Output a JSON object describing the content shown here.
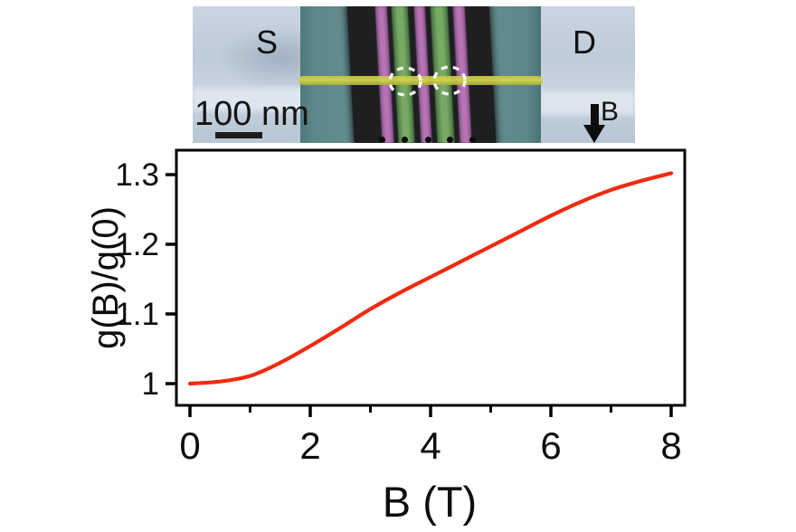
{
  "sem": {
    "source_label": "S",
    "drain_label": "D",
    "scale_bar_label": "100 nm",
    "field_arrow_label": "B",
    "gate_dot_count": 5,
    "colors": {
      "mesa": "#5e8889",
      "gate_dark": "#1d1f21",
      "gate_pink": "#b873b5",
      "gate_green": "#77ab64",
      "nanowire": "#d6d84e",
      "marker": "#ffffff",
      "dot": "#0c0c0c"
    }
  },
  "chart_data": {
    "type": "line",
    "title": "",
    "xlabel": "B (T)",
    "ylabel": "g(B)/g(0)",
    "xlim": [
      -0.23,
      8.23
    ],
    "ylim": [
      0.968,
      1.336
    ],
    "xticks": [
      0,
      2,
      4,
      6,
      8
    ],
    "xticks_minor": [
      1,
      3,
      5,
      7
    ],
    "yticks": [
      1,
      1.1,
      1.2,
      1.3
    ],
    "ytick_labels": [
      "1",
      "1.1",
      "1.2",
      "1.3"
    ],
    "grid": false,
    "legend": null,
    "axis_color": "#000000",
    "series": [
      {
        "name": "g(B)/g(0)",
        "color": "#f12a10",
        "x": [
          0,
          0.5,
          1,
          1.5,
          2,
          2.5,
          3,
          3.5,
          4,
          4.5,
          5,
          5.5,
          6,
          6.5,
          7,
          7.5,
          8
        ],
        "y": [
          1.0,
          1.003,
          1.011,
          1.03,
          1.054,
          1.08,
          1.107,
          1.131,
          1.153,
          1.175,
          1.197,
          1.219,
          1.241,
          1.261,
          1.278,
          1.291,
          1.302
        ]
      }
    ]
  }
}
